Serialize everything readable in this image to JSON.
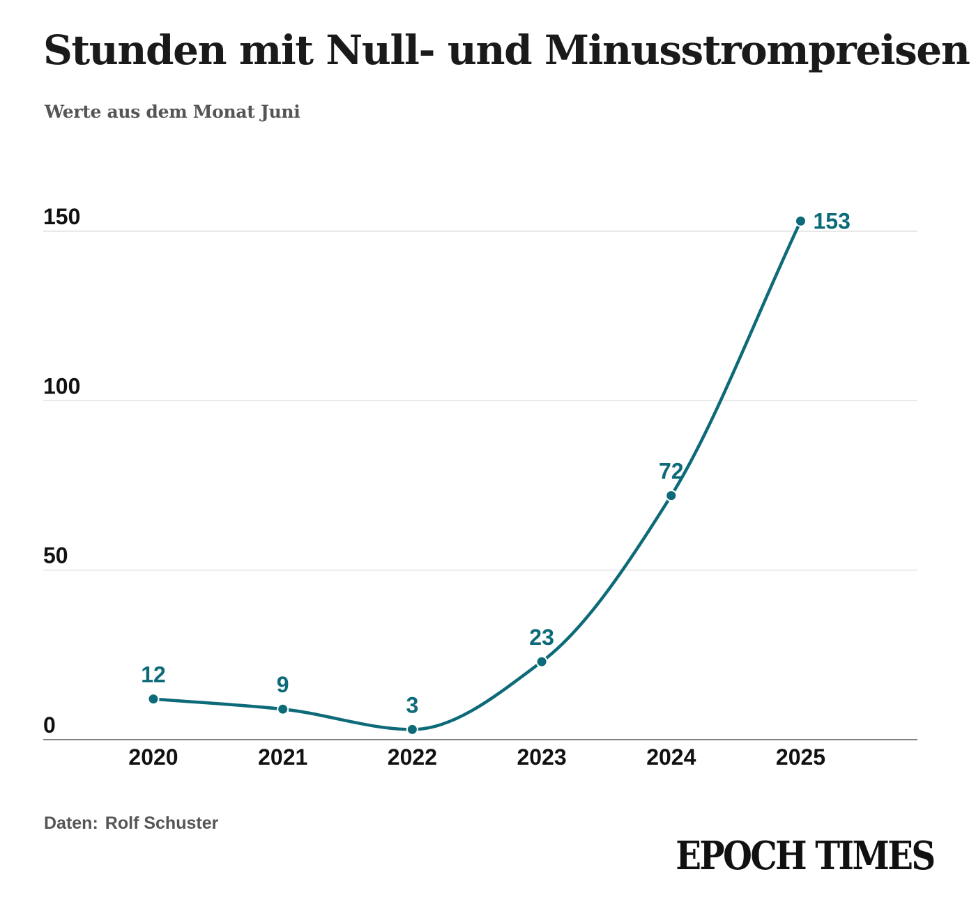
{
  "title": "Stunden mit Null- und Minusstrompreisen",
  "subtitle": "Werte aus dem Monat Juni",
  "source": {
    "label": "Daten:",
    "value": "Rolf Schuster"
  },
  "logo": "EPOCH TIMES",
  "colors": {
    "line": "#0d6a78",
    "grid": "#e2e2e2",
    "axis": "#555555"
  },
  "chart_data": {
    "type": "line",
    "x": [
      "2020",
      "2021",
      "2022",
      "2023",
      "2024",
      "2025"
    ],
    "series": [
      {
        "values": [
          12,
          9,
          3,
          23,
          72,
          153
        ]
      }
    ],
    "data_labels": [
      "12",
      "9",
      "3",
      "23",
      "72",
      "153"
    ],
    "y_ticks": [
      0,
      50,
      100,
      150
    ],
    "ylim": [
      0,
      150
    ],
    "grid": true,
    "smooth": true
  }
}
